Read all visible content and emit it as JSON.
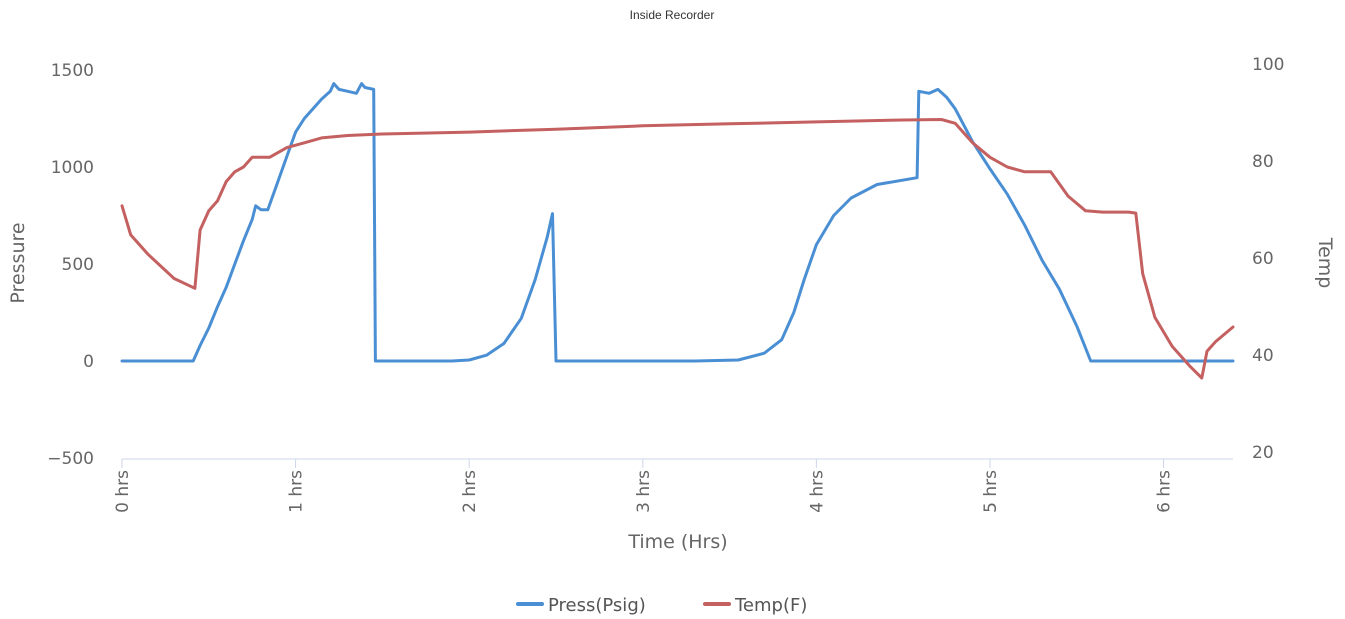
{
  "chart_data": {
    "type": "line",
    "title": "Inside Recorder",
    "xlabel": "Time (Hrs)",
    "ylabel_left": "Pressure",
    "ylabel_right": "Temp",
    "xlim": [
      0,
      6.4
    ],
    "ylim_left": [
      -500,
      1500
    ],
    "ylim_right": [
      20,
      100
    ],
    "x_ticks": [
      0,
      1,
      2,
      3,
      4,
      5,
      6
    ],
    "x_tick_labels": [
      "0 hrs",
      "1 hrs",
      "2 hrs",
      "3 hrs",
      "4 hrs",
      "5 hrs",
      "6 hrs"
    ],
    "y_left_ticks": [
      -500,
      0,
      500,
      1000,
      1500
    ],
    "y_left_tick_labels": [
      "−500",
      "0",
      "500",
      "1000",
      "1500"
    ],
    "y_right_ticks": [
      20,
      40,
      60,
      80,
      100
    ],
    "y_right_tick_labels": [
      "20",
      "40",
      "60",
      "80",
      "100"
    ],
    "grid": false,
    "legend_position": "bottom-center",
    "series": [
      {
        "name": "Press(Psig)",
        "axis": "left",
        "color": "#4a8fd4",
        "points": [
          [
            0,
            0
          ],
          [
            0.41,
            0
          ],
          [
            0.45,
            80
          ],
          [
            0.5,
            170
          ],
          [
            0.55,
            280
          ],
          [
            0.6,
            380
          ],
          [
            0.65,
            500
          ],
          [
            0.7,
            620
          ],
          [
            0.75,
            730
          ],
          [
            0.77,
            800
          ],
          [
            0.8,
            780
          ],
          [
            0.84,
            780
          ],
          [
            0.88,
            880
          ],
          [
            0.92,
            980
          ],
          [
            0.96,
            1080
          ],
          [
            1.0,
            1180
          ],
          [
            1.05,
            1250
          ],
          [
            1.1,
            1300
          ],
          [
            1.15,
            1350
          ],
          [
            1.2,
            1390
          ],
          [
            1.22,
            1430
          ],
          [
            1.25,
            1400
          ],
          [
            1.3,
            1390
          ],
          [
            1.35,
            1380
          ],
          [
            1.38,
            1430
          ],
          [
            1.4,
            1410
          ],
          [
            1.45,
            1400
          ],
          [
            1.46,
            0
          ],
          [
            1.9,
            0
          ],
          [
            2.0,
            5
          ],
          [
            2.1,
            30
          ],
          [
            2.2,
            90
          ],
          [
            2.3,
            220
          ],
          [
            2.38,
            420
          ],
          [
            2.45,
            640
          ],
          [
            2.48,
            760
          ],
          [
            2.5,
            0
          ],
          [
            3.3,
            0
          ],
          [
            3.55,
            5
          ],
          [
            3.7,
            40
          ],
          [
            3.8,
            110
          ],
          [
            3.87,
            250
          ],
          [
            3.93,
            420
          ],
          [
            4.0,
            600
          ],
          [
            4.1,
            750
          ],
          [
            4.2,
            840
          ],
          [
            4.35,
            910
          ],
          [
            4.58,
            945
          ],
          [
            4.59,
            1390
          ],
          [
            4.65,
            1380
          ],
          [
            4.7,
            1400
          ],
          [
            4.75,
            1360
          ],
          [
            4.8,
            1300
          ],
          [
            4.9,
            1130
          ],
          [
            5.0,
            990
          ],
          [
            5.1,
            860
          ],
          [
            5.2,
            700
          ],
          [
            5.3,
            520
          ],
          [
            5.4,
            370
          ],
          [
            5.5,
            180
          ],
          [
            5.58,
            0
          ],
          [
            6.4,
            0
          ]
        ]
      },
      {
        "name": "Temp(F)",
        "axis": "right",
        "color": "#c46060",
        "points": [
          [
            0,
            72
          ],
          [
            0.05,
            66
          ],
          [
            0.15,
            62
          ],
          [
            0.3,
            57
          ],
          [
            0.42,
            55
          ],
          [
            0.45,
            67
          ],
          [
            0.5,
            71
          ],
          [
            0.55,
            73
          ],
          [
            0.6,
            77
          ],
          [
            0.65,
            79
          ],
          [
            0.7,
            80
          ],
          [
            0.75,
            82
          ],
          [
            0.85,
            82
          ],
          [
            0.95,
            84
          ],
          [
            1.05,
            85
          ],
          [
            1.15,
            86
          ],
          [
            1.3,
            86.5
          ],
          [
            1.5,
            86.8
          ],
          [
            2.0,
            87.2
          ],
          [
            2.5,
            87.8
          ],
          [
            3.0,
            88.5
          ],
          [
            3.5,
            88.9
          ],
          [
            4.0,
            89.3
          ],
          [
            4.5,
            89.7
          ],
          [
            4.72,
            89.8
          ],
          [
            4.8,
            89
          ],
          [
            4.9,
            85
          ],
          [
            5.0,
            82
          ],
          [
            5.1,
            80
          ],
          [
            5.2,
            79
          ],
          [
            5.35,
            79
          ],
          [
            5.45,
            74
          ],
          [
            5.55,
            71
          ],
          [
            5.65,
            70.7
          ],
          [
            5.8,
            70.7
          ],
          [
            5.84,
            70.5
          ],
          [
            5.88,
            58
          ],
          [
            5.95,
            49
          ],
          [
            6.05,
            43
          ],
          [
            6.15,
            39
          ],
          [
            6.22,
            36.5
          ],
          [
            6.25,
            42
          ],
          [
            6.3,
            44
          ],
          [
            6.4,
            47
          ]
        ]
      }
    ]
  }
}
